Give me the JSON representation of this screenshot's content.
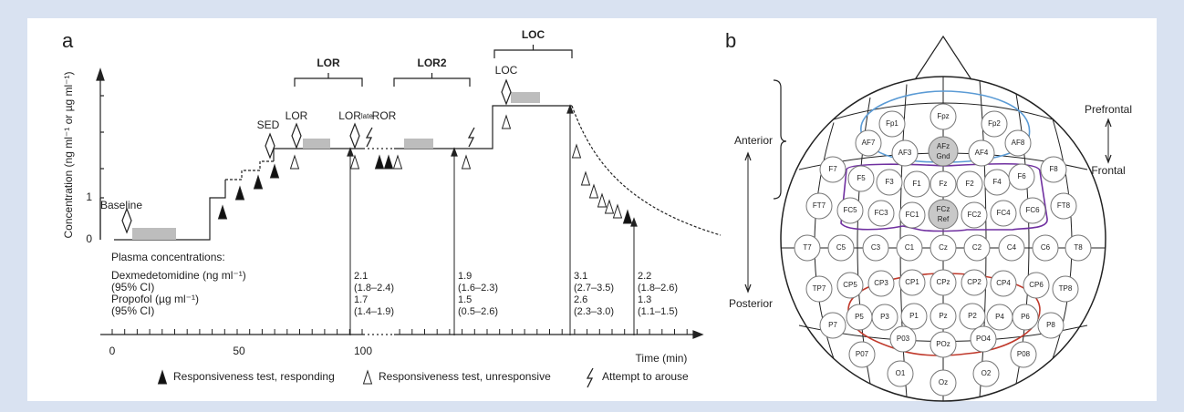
{
  "panel_a": {
    "label": "a",
    "y_axis_label": "Concentration (ng ml⁻¹ or µg ml⁻¹)",
    "y_ticks": [
      0,
      1
    ],
    "x_ticks": [
      0,
      50,
      100
    ],
    "x_axis_label": "Time (min)",
    "events": {
      "baseline": "Baseline",
      "sed": "SED",
      "lor": "LOR",
      "lor_late": {
        "text": "LOR",
        "subscript": "late"
      },
      "ror": "ROR",
      "loc": "LOC"
    },
    "braces": [
      "LOR",
      "LOR2",
      "LOC"
    ],
    "plasma": {
      "title": "Plasma concentrations:",
      "row_labels": [
        "Dexmedetomidine (ng ml⁻¹)",
        "(95% CI)",
        "Propofol (µg ml⁻¹)",
        "(95% CI)"
      ],
      "columns": [
        [
          2.1,
          "(1.8–2.4)",
          1.7,
          "(1.4–1.9)"
        ],
        [
          1.9,
          "(1.6–2.3)",
          1.5,
          "(0.5–2.6)"
        ],
        [
          3.1,
          "(2.7–3.5)",
          2.6,
          "(2.3–3.0)"
        ],
        [
          2.2,
          "(1.8–2.6)",
          1.3,
          "(1.1–1.5)"
        ]
      ]
    },
    "legend": [
      "Responsiveness test, responding",
      "Responsiveness test, unresponsive",
      "Attempt to arouse"
    ]
  },
  "panel_b": {
    "label": "b",
    "regions": {
      "anterior": "Anterior",
      "posterior": "Posterior",
      "prefrontal": "Prefrontal",
      "frontal": "Frontal"
    },
    "electrodes": [
      {
        "label": "Fp1"
      },
      {
        "label": "Fpz"
      },
      {
        "label": "Fp2"
      },
      {
        "label": "AF7"
      },
      {
        "label": "AF3"
      },
      {
        "label": "AFz",
        "sub": "Gnd"
      },
      {
        "label": "AF4"
      },
      {
        "label": "AF8"
      },
      {
        "label": "F7"
      },
      {
        "label": "F5"
      },
      {
        "label": "F3"
      },
      {
        "label": "F1"
      },
      {
        "label": "Fz"
      },
      {
        "label": "F2"
      },
      {
        "label": "F4"
      },
      {
        "label": "F6"
      },
      {
        "label": "F8"
      },
      {
        "label": "FT7"
      },
      {
        "label": "FC5"
      },
      {
        "label": "FC3"
      },
      {
        "label": "FC1"
      },
      {
        "label": "FCz",
        "sub": "Ref"
      },
      {
        "label": "FC2"
      },
      {
        "label": "FC4"
      },
      {
        "label": "FC6"
      },
      {
        "label": "FT8"
      },
      {
        "label": "T7"
      },
      {
        "label": "C5"
      },
      {
        "label": "C3"
      },
      {
        "label": "C1"
      },
      {
        "label": "Cz"
      },
      {
        "label": "C2"
      },
      {
        "label": "C4"
      },
      {
        "label": "C6"
      },
      {
        "label": "T8"
      },
      {
        "label": "TP7"
      },
      {
        "label": "CP5"
      },
      {
        "label": "CP3"
      },
      {
        "label": "CP1"
      },
      {
        "label": "CPz"
      },
      {
        "label": "CP2"
      },
      {
        "label": "CP4"
      },
      {
        "label": "CP6"
      },
      {
        "label": "TP8"
      },
      {
        "label": "P7"
      },
      {
        "label": "P5"
      },
      {
        "label": "P3"
      },
      {
        "label": "P1"
      },
      {
        "label": "Pz"
      },
      {
        "label": "P2"
      },
      {
        "label": "P4"
      },
      {
        "label": "P6"
      },
      {
        "label": "P8"
      },
      {
        "label": "P07"
      },
      {
        "label": "P03"
      },
      {
        "label": "POz"
      },
      {
        "label": "PO4"
      },
      {
        "label": "P08"
      },
      {
        "label": "O1"
      },
      {
        "label": "Oz"
      },
      {
        "label": "O2"
      }
    ]
  }
}
